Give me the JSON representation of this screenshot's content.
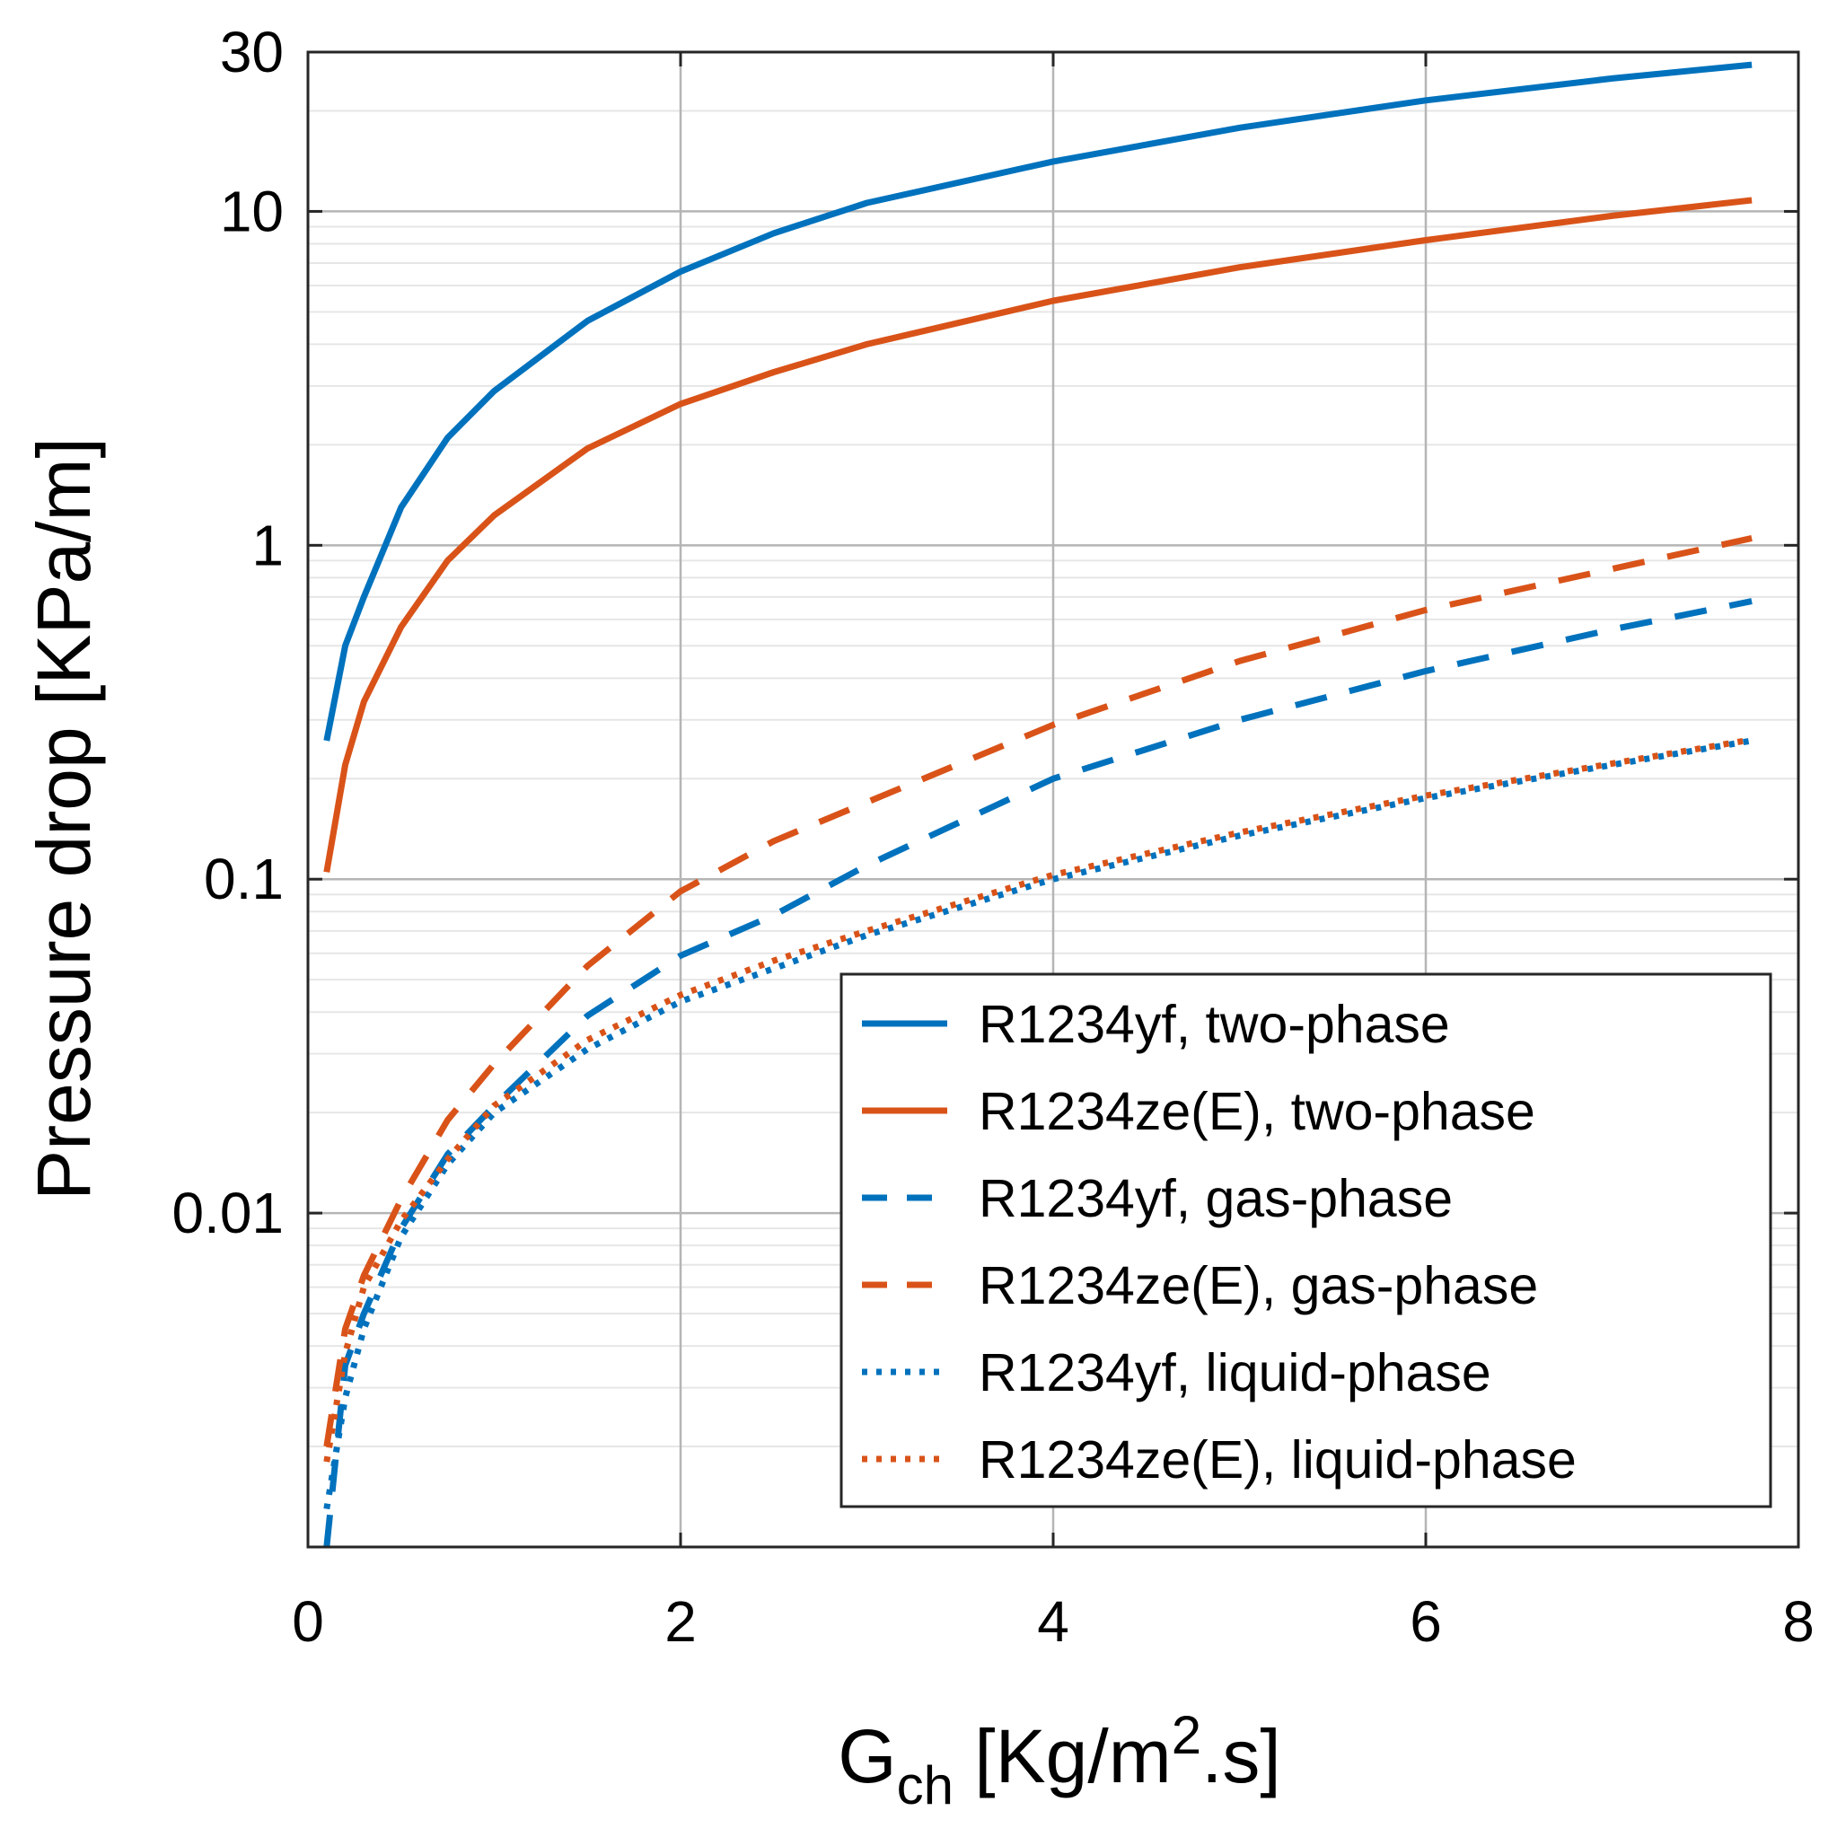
{
  "chart_data": {
    "type": "line",
    "title": "",
    "xlabel": {
      "main": "G",
      "sub": "ch",
      "unit_pre": " [Kg/m",
      "sup": "2",
      "unit_post": ".s]"
    },
    "ylabel": "Pressure drop [KPa/m]",
    "xlim": [
      0,
      8
    ],
    "ylim": [
      0.001,
      30
    ],
    "yscale": "log",
    "grid": true,
    "legend_position": "bottom-right",
    "x_ticks": [
      {
        "value": 0,
        "label": "0"
      },
      {
        "value": 2,
        "label": "2"
      },
      {
        "value": 4,
        "label": "4"
      },
      {
        "value": 6,
        "label": "6"
      },
      {
        "value": 8,
        "label": "8"
      }
    ],
    "y_ticks": [
      {
        "value": 0.01,
        "label": "0.01"
      },
      {
        "value": 0.1,
        "label": "0.1"
      },
      {
        "value": 1,
        "label": "1"
      },
      {
        "value": 10,
        "label": "10"
      },
      {
        "value": 30,
        "label": "30"
      }
    ],
    "series": [
      {
        "name": "R1234yf, two-phase",
        "color": "#0072BD",
        "style": "solid",
        "x": [
          0.1,
          0.2,
          0.3,
          0.5,
          0.75,
          1.0,
          1.5,
          2.0,
          2.5,
          3.0,
          4.0,
          5.0,
          6.0,
          7.0,
          7.75
        ],
        "y": [
          0.26,
          0.5,
          0.7,
          1.3,
          2.1,
          2.9,
          4.7,
          6.6,
          8.6,
          10.6,
          14.1,
          17.8,
          21.5,
          25.0,
          27.5
        ]
      },
      {
        "name": "R1234ze(E), two-phase",
        "color": "#D95319",
        "style": "solid",
        "x": [
          0.1,
          0.2,
          0.3,
          0.5,
          0.75,
          1.0,
          1.5,
          2.0,
          2.5,
          3.0,
          4.0,
          5.0,
          6.0,
          7.0,
          7.75
        ],
        "y": [
          0.105,
          0.22,
          0.34,
          0.57,
          0.9,
          1.23,
          1.95,
          2.65,
          3.3,
          4.0,
          5.4,
          6.8,
          8.2,
          9.7,
          10.8
        ]
      },
      {
        "name": "R1234yf, gas-phase",
        "color": "#0072BD",
        "style": "dashed",
        "x": [
          0.1,
          0.2,
          0.3,
          0.5,
          0.75,
          1.0,
          1.5,
          2.0,
          2.5,
          3.0,
          4.0,
          5.0,
          6.0,
          7.0,
          7.75
        ],
        "y": [
          0.001,
          0.0035,
          0.005,
          0.009,
          0.015,
          0.021,
          0.039,
          0.059,
          0.078,
          0.11,
          0.2,
          0.3,
          0.42,
          0.56,
          0.68
        ]
      },
      {
        "name": "R1234ze(E), gas-phase",
        "color": "#D95319",
        "style": "dashed",
        "x": [
          0.1,
          0.2,
          0.3,
          0.5,
          0.75,
          1.0,
          1.5,
          2.0,
          2.5,
          3.0,
          4.0,
          5.0,
          6.0,
          7.0,
          7.75
        ],
        "y": [
          0.002,
          0.0045,
          0.0065,
          0.011,
          0.019,
          0.028,
          0.055,
          0.092,
          0.13,
          0.17,
          0.29,
          0.45,
          0.64,
          0.85,
          1.05
        ]
      },
      {
        "name": "R1234yf, liquid-phase",
        "color": "#0072BD",
        "style": "dotted",
        "x": [
          0.1,
          0.2,
          0.3,
          0.5,
          0.75,
          1.0,
          1.5,
          2.0,
          2.5,
          3.0,
          4.0,
          5.0,
          6.0,
          7.0,
          7.75
        ],
        "y": [
          0.0013,
          0.0028,
          0.0045,
          0.0085,
          0.014,
          0.02,
          0.031,
          0.043,
          0.054,
          0.068,
          0.1,
          0.135,
          0.175,
          0.22,
          0.26
        ]
      },
      {
        "name": "R1234ze(E), liquid-phase",
        "color": "#D95319",
        "style": "dotted",
        "x": [
          0.1,
          0.2,
          0.3,
          0.5,
          0.75,
          1.0,
          1.5,
          2.0,
          2.5,
          3.0,
          4.0,
          5.0,
          6.0,
          7.0,
          7.75
        ],
        "y": [
          0.0018,
          0.0038,
          0.006,
          0.0095,
          0.0145,
          0.021,
          0.033,
          0.045,
          0.057,
          0.07,
          0.103,
          0.138,
          0.178,
          0.222,
          0.262
        ]
      }
    ]
  }
}
